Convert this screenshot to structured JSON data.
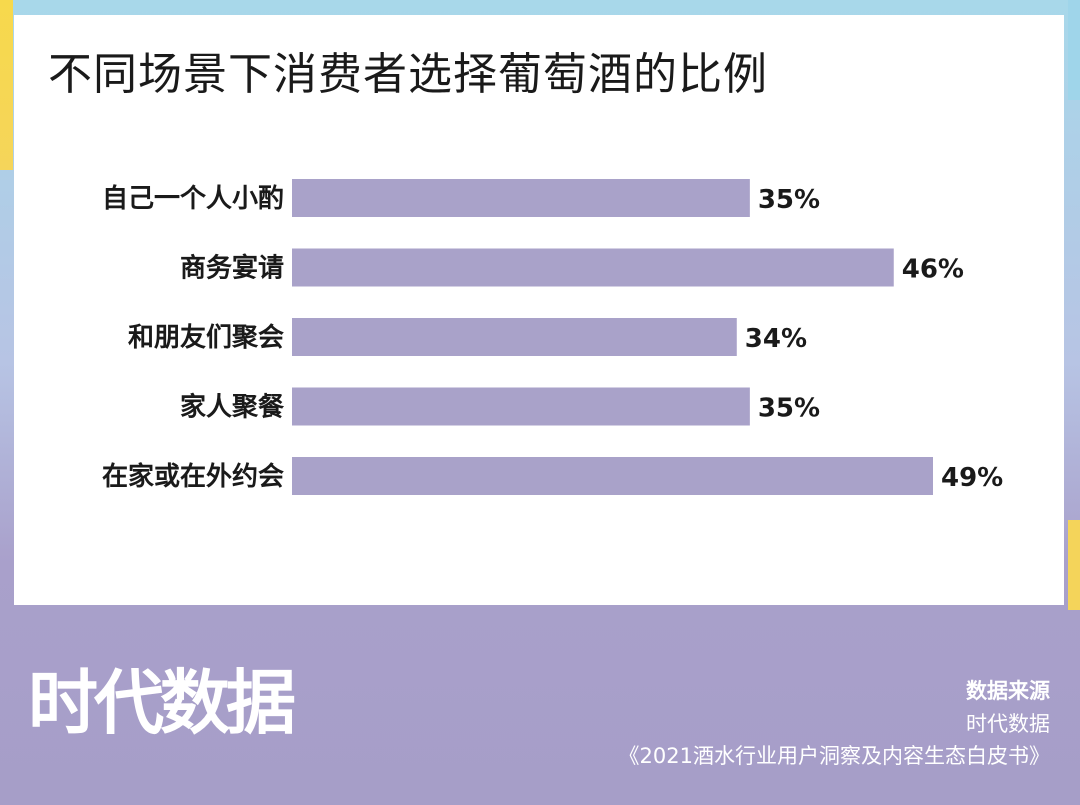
{
  "colors": {
    "bar": "#a9a2c9",
    "card": "#ffffff",
    "text": "#1a1a1a",
    "accent_yellow": "#f5d55a",
    "accent_blue": "#a8d8ea"
  },
  "chart_data": {
    "type": "bar",
    "orientation": "horizontal",
    "title": "不同场景下消费者选择葡萄酒的比例",
    "categories": [
      "自己一个人小酌",
      "商务宴请",
      "和朋友们聚会",
      "家人聚餐",
      "在家或在外约会"
    ],
    "values": [
      35,
      46,
      34,
      35,
      49
    ],
    "value_labels": [
      "35%",
      "46%",
      "34%",
      "35%",
      "49%"
    ],
    "unit": "%",
    "xlim": [
      0,
      49
    ],
    "grid": false,
    "legend": "none"
  },
  "footer": {
    "logo_text": "时代数据",
    "source_heading": "数据来源",
    "source_name": "时代数据",
    "source_doc": "《2021酒水行业用户洞察及内容生态白皮书》"
  }
}
